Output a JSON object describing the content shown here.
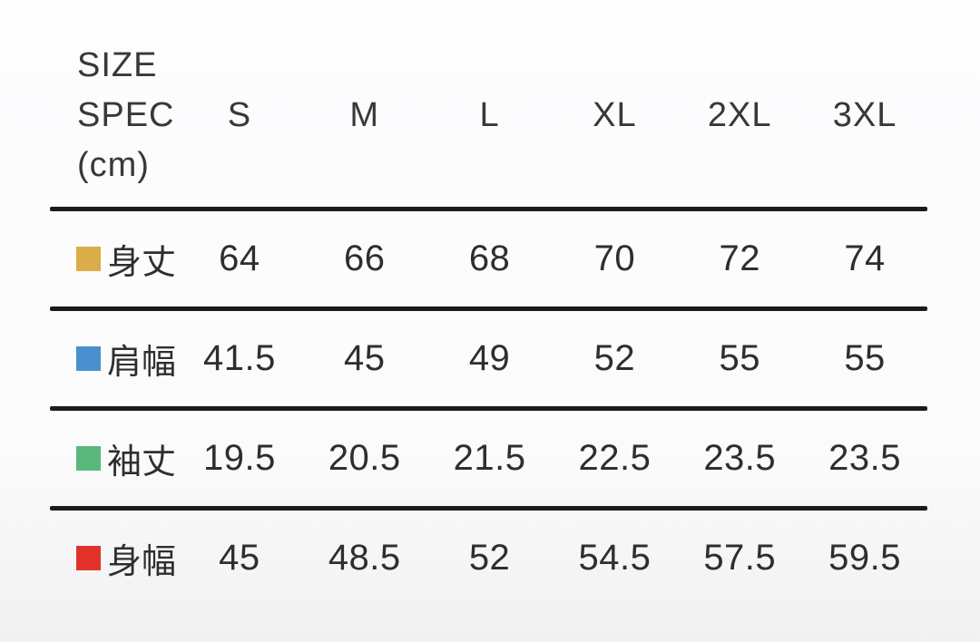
{
  "header": {
    "title_line1": "SIZE",
    "title_line2": "SPEC",
    "title_line3": "(cm)",
    "columns": [
      "S",
      "M",
      "L",
      "XL",
      "2XL",
      "3XL"
    ]
  },
  "colors": {
    "rule": "#1b1b1b",
    "text": "#2e2e2e",
    "background": "#fdfdfe"
  },
  "chart_data": {
    "type": "table",
    "title": "SIZE SPEC (cm)",
    "unit": "cm",
    "categories": [
      "S",
      "M",
      "L",
      "XL",
      "2XL",
      "3XL"
    ],
    "series": [
      {
        "name": "身丈",
        "color": "#DCAC48",
        "values": [
          64,
          66,
          68,
          70,
          72,
          74
        ]
      },
      {
        "name": "肩幅",
        "color": "#4B90CE",
        "values": [
          41.5,
          45,
          49,
          52,
          55,
          55
        ]
      },
      {
        "name": "袖丈",
        "color": "#5AB77E",
        "values": [
          19.5,
          20.5,
          21.5,
          22.5,
          23.5,
          23.5
        ]
      },
      {
        "name": "身幅",
        "color": "#E1332B",
        "values": [
          45,
          48.5,
          52,
          54.5,
          57.5,
          59.5
        ]
      }
    ]
  }
}
